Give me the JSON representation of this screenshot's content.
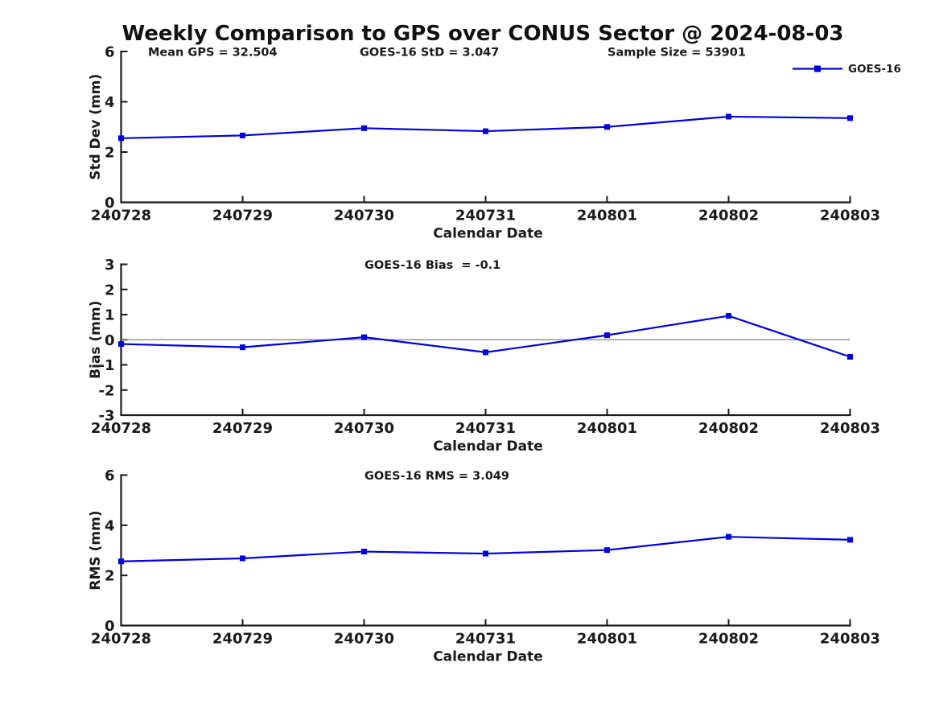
{
  "title": "Weekly Comparison to GPS over CONUS Sector @ 2024-08-03",
  "colors": {
    "line": "#0000E0",
    "axis": "#1a1a1a",
    "text": "#1a1a1a",
    "zero_line": "#808080",
    "background": "#ffffff"
  },
  "legend": {
    "label": "GOES-16"
  },
  "chart_data": [
    {
      "type": "line",
      "id": "stddev",
      "annotations": [
        "Mean GPS = 32.504",
        "GOES-16 StD = 3.047",
        "Sample Size = 53901"
      ],
      "categories": [
        "240728",
        "240729",
        "240730",
        "240731",
        "240801",
        "240802",
        "240803"
      ],
      "series": [
        {
          "name": "GOES-16",
          "values": [
            2.55,
            2.66,
            2.95,
            2.83,
            3.0,
            3.41,
            3.35
          ]
        }
      ],
      "xlabel": "Calendar Date",
      "ylabel": "Std Dev (mm)",
      "ylim": [
        0,
        6
      ],
      "yticks": [
        0,
        2,
        4,
        6
      ],
      "zero_line": false,
      "legend_visible": true,
      "grid": false
    },
    {
      "type": "line",
      "id": "bias",
      "annotations": [
        "GOES-16 Bias  = -0.1"
      ],
      "categories": [
        "240728",
        "240729",
        "240730",
        "240731",
        "240801",
        "240802",
        "240803"
      ],
      "series": [
        {
          "name": "GOES-16",
          "values": [
            -0.17,
            -0.3,
            0.1,
            -0.5,
            0.18,
            0.95,
            -0.68
          ]
        }
      ],
      "xlabel": "Calendar Date",
      "ylabel": "Bias (mm)",
      "ylim": [
        -3,
        3
      ],
      "yticks": [
        -3,
        -2,
        -1,
        0,
        1,
        2,
        3
      ],
      "zero_line": true,
      "legend_visible": false,
      "grid": false
    },
    {
      "type": "line",
      "id": "rms",
      "annotations": [
        "GOES-16 RMS = 3.049"
      ],
      "categories": [
        "240728",
        "240729",
        "240730",
        "240731",
        "240801",
        "240802",
        "240803"
      ],
      "series": [
        {
          "name": "GOES-16",
          "values": [
            2.56,
            2.68,
            2.95,
            2.87,
            3.01,
            3.54,
            3.42
          ]
        }
      ],
      "xlabel": "Calendar Date",
      "ylabel": "RMS (mm)",
      "ylim": [
        0,
        6
      ],
      "yticks": [
        0,
        2,
        4,
        6
      ],
      "zero_line": false,
      "legend_visible": false,
      "grid": false
    }
  ]
}
